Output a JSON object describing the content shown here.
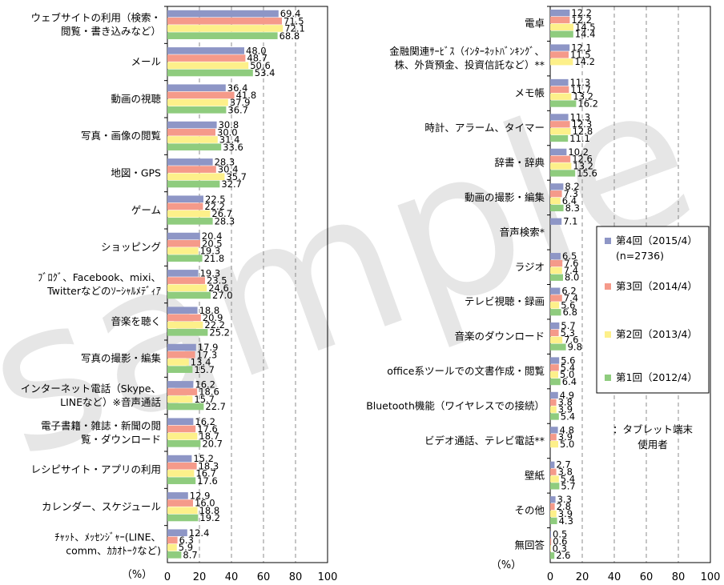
{
  "chart_data": [
    {
      "type": "bar",
      "orientation": "horizontal",
      "xlim": [
        0,
        100
      ],
      "xticks": [
        "0",
        "20",
        "40",
        "60",
        "80",
        "100"
      ],
      "unit_label": "（%）",
      "series": [
        {
          "name": "第4回（2015/4）",
          "color": "#8e96c6"
        },
        {
          "name": "第3回（2014/4）",
          "color": "#f59a8a"
        },
        {
          "name": "第2回（2013/4）",
          "color": "#fdf08a"
        },
        {
          "name": "第1回（2012/4）",
          "color": "#8fcc7e"
        }
      ],
      "categories": [
        {
          "label": [
            "ウェブサイトの利用（検索・",
            "閲覧・書き込みなど）"
          ],
          "values": [
            69.4,
            71.5,
            72.1,
            68.8
          ]
        },
        {
          "label": [
            "メール"
          ],
          "values": [
            48.0,
            48.7,
            50.6,
            53.4
          ]
        },
        {
          "label": [
            "動画の視聴"
          ],
          "values": [
            36.4,
            41.8,
            37.9,
            36.7
          ]
        },
        {
          "label": [
            "写真・画像の閲覧"
          ],
          "values": [
            30.8,
            30.0,
            31.4,
            33.6
          ]
        },
        {
          "label": [
            "地図・GPS"
          ],
          "values": [
            28.3,
            30.4,
            35.7,
            32.7
          ]
        },
        {
          "label": [
            "ゲーム"
          ],
          "values": [
            22.5,
            22.2,
            26.7,
            28.3
          ]
        },
        {
          "label": [
            "ショッピング"
          ],
          "values": [
            20.4,
            20.5,
            19.3,
            21.8
          ]
        },
        {
          "label": [
            "ﾌﾞﾛｸﾞ、Facebook、mixi、",
            "Twitterなどのｿｰｼｬﾙﾒﾃﾞｨｱ"
          ],
          "values": [
            19.3,
            23.5,
            24.6,
            27.0
          ]
        },
        {
          "label": [
            "音楽を聴く"
          ],
          "values": [
            18.8,
            20.9,
            22.2,
            25.2
          ]
        },
        {
          "label": [
            "写真の撮影・編集"
          ],
          "values": [
            17.9,
            17.3,
            13.4,
            15.7
          ]
        },
        {
          "label": [
            "インターネット電話（Skype、",
            "LINEなど）※音声通話"
          ],
          "values": [
            16.2,
            18.6,
            15.7,
            22.7
          ]
        },
        {
          "label": [
            "電子書籍・雑誌・新聞の閲",
            "覧・ダウンロード"
          ],
          "values": [
            16.2,
            17.6,
            18.7,
            20.7
          ]
        },
        {
          "label": [
            "レシピサイト・アプリの利用"
          ],
          "values": [
            15.2,
            18.3,
            16.7,
            17.6
          ]
        },
        {
          "label": [
            "カレンダー、スケジュール"
          ],
          "values": [
            12.9,
            16.0,
            18.8,
            19.2
          ]
        },
        {
          "label": [
            "ﾁｬｯﾄ、ﾒｯｾﾝｼﾞｬｰ(LINE、",
            "comm、ｶｶｵﾄｰｸなど)"
          ],
          "values": [
            12.4,
            6.3,
            5.9,
            8.7
          ]
        }
      ]
    },
    {
      "type": "bar",
      "orientation": "horizontal",
      "xlim": [
        0,
        100
      ],
      "xticks": [
        "0",
        "20",
        "40",
        "60",
        "80",
        "100"
      ],
      "unit_label": "（%）",
      "series": [
        {
          "name": "第4回（2015/4）",
          "color": "#8e96c6"
        },
        {
          "name": "第3回（2014/4）",
          "color": "#f59a8a"
        },
        {
          "name": "第2回（2013/4）",
          "color": "#fdf08a"
        },
        {
          "name": "第1回（2012/4）",
          "color": "#8fcc7e"
        }
      ],
      "categories": [
        {
          "label": [
            "電卓"
          ],
          "values": [
            12.2,
            12.2,
            14.5,
            14.4
          ]
        },
        {
          "label": [
            "金融関連ｻｰﾋﾞｽ（ｲﾝﾀｰﾈｯﾄﾊﾞﾝｷﾝｸﾞ、",
            "株、外貨預金、投資信託など）**"
          ],
          "values": [
            12.1,
            11.5,
            14.2,
            null
          ]
        },
        {
          "label": [
            "メモ帳"
          ],
          "values": [
            11.3,
            11.7,
            13.2,
            16.2
          ]
        },
        {
          "label": [
            "時計、アラーム、タイマー"
          ],
          "values": [
            11.3,
            12.3,
            12.8,
            11.1
          ]
        },
        {
          "label": [
            "辞書・辞典"
          ],
          "values": [
            10.2,
            12.6,
            13.2,
            15.6
          ]
        },
        {
          "label": [
            "動画の撮影・編集"
          ],
          "values": [
            8.2,
            7.3,
            6.4,
            8.3
          ]
        },
        {
          "label": [
            "音声検索*"
          ],
          "values": [
            7.1,
            null,
            null,
            null
          ]
        },
        {
          "label": [
            "ラジオ"
          ],
          "values": [
            6.5,
            7.6,
            7.4,
            8.0
          ]
        },
        {
          "label": [
            "テレビ視聴・録画"
          ],
          "values": [
            6.2,
            7.4,
            5.6,
            6.8
          ]
        },
        {
          "label": [
            "音楽のダウンロード"
          ],
          "values": [
            5.7,
            5.3,
            7.6,
            9.8
          ]
        },
        {
          "label": [
            "office系ツールでの文書作成・閲覧"
          ],
          "values": [
            5.6,
            5.4,
            5.0,
            6.4
          ]
        },
        {
          "label": [
            "Bluetooth機能（ワイヤレスでの接続）"
          ],
          "values": [
            4.9,
            3.8,
            3.9,
            5.4
          ]
        },
        {
          "label": [
            "ビデオ通話、テレビ電話**"
          ],
          "values": [
            4.8,
            3.9,
            5.0,
            null
          ]
        },
        {
          "label": [
            "壁紙"
          ],
          "values": [
            2.7,
            3.8,
            5.4,
            5.7
          ]
        },
        {
          "label": [
            "その他"
          ],
          "values": [
            3.3,
            2.8,
            3.9,
            4.3
          ]
        },
        {
          "label": [
            "無回答"
          ],
          "values": [
            0.5,
            0.6,
            0.3,
            2.6
          ]
        }
      ]
    }
  ],
  "legend": {
    "items": [
      "第4回（2015/4）",
      "(n=2736)",
      "第3回（2014/4）",
      "第2回（2013/4）",
      "第1回（2012/4）"
    ],
    "placement": "right"
  },
  "note": [
    "：タブレット端末",
    "使用者"
  ],
  "watermark": "sample"
}
